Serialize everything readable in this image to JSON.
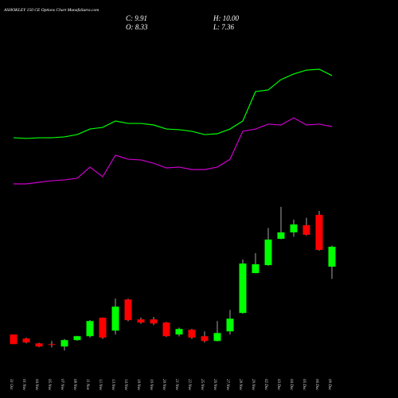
{
  "chart_data": {
    "type": "candlestick",
    "title": "ASHOKLEY 150 CE Options Chart MunafaSutra.com",
    "header": [
      "C: 9.91",
      "H: 10.00",
      "O: 8.33",
      "L: 7.36"
    ],
    "categories": [
      "31 Oct",
      "01 Nov",
      "04 Nov",
      "05 Nov",
      "07 Nov",
      "08 Nov",
      "11 Nov",
      "12 Nov",
      "13 Nov",
      "14 Nov",
      "18 Nov",
      "19 Nov",
      "20 Nov",
      "21 Nov",
      "22 Nov",
      "25 Nov",
      "26 Nov",
      "27 Nov",
      "28 Nov",
      "29 Nov",
      "02 Dec",
      "03 Dec",
      "04 Dec",
      "05 Dec",
      "06 Dec",
      "09 Dec"
    ],
    "open": [
      2.95,
      2.63,
      2.25,
      2.19,
      2.0,
      2.51,
      2.82,
      4.28,
      3.26,
      5.73,
      4.15,
      4.15,
      3.9,
      2.95,
      3.33,
      2.82,
      2.44,
      3.2,
      4.66,
      7.82,
      8.45,
      10.54,
      11.05,
      11.62,
      12.44,
      8.33
    ],
    "high": [
      2.95,
      2.7,
      2.3,
      2.44,
      2.6,
      2.85,
      4.1,
      4.3,
      5.8,
      5.8,
      4.3,
      4.35,
      3.95,
      3.5,
      3.4,
      3.2,
      4.02,
      4.9,
      8.9,
      9.4,
      11.4,
      13.07,
      12.06,
      12.2,
      12.75,
      10.0
    ],
    "low": [
      2.19,
      2.25,
      1.95,
      1.93,
      1.68,
      2.45,
      2.7,
      2.6,
      2.95,
      4.0,
      3.8,
      3.7,
      2.75,
      2.8,
      2.6,
      2.32,
      2.4,
      2.95,
      4.6,
      7.8,
      8.4,
      10.5,
      10.7,
      10.8,
      9.6,
      7.36
    ],
    "close": [
      2.19,
      2.32,
      2.0,
      2.13,
      2.51,
      2.82,
      4.02,
      2.7,
      5.16,
      4.09,
      3.9,
      3.83,
      2.82,
      3.39,
      2.7,
      2.44,
      3.07,
      4.21,
      8.58,
      8.52,
      10.48,
      11.05,
      11.68,
      10.86,
      9.66,
      9.91
    ],
    "up_color": "#00ff00",
    "down_color": "#ff0000",
    "ylim": [
      0,
      13
    ],
    "y2lim": [
      0,
      100
    ],
    "series": [
      {
        "name": null,
        "color": "#00ff00",
        "axis": "y2",
        "values": [
          37.2,
          36.7,
          37.2,
          37.2,
          37.8,
          39.4,
          43.3,
          44.4,
          48.9,
          47.2,
          47.2,
          46.1,
          43.3,
          42.8,
          41.7,
          39.4,
          40,
          43.3,
          48.9,
          69.4,
          70.6,
          77.8,
          81.7,
          84.4,
          85,
          80.6
        ]
      },
      {
        "name": null,
        "color": "#cc00cc",
        "axis": "y2",
        "values": [
          5,
          5,
          6.1,
          7.2,
          7.8,
          8.9,
          16.7,
          10,
          25,
          22.2,
          21.7,
          19.4,
          16.1,
          16.7,
          15,
          15,
          16.7,
          22.2,
          41.7,
          43.3,
          46.7,
          46.1,
          51.1,
          46.1,
          46.7,
          45
        ]
      }
    ]
  }
}
